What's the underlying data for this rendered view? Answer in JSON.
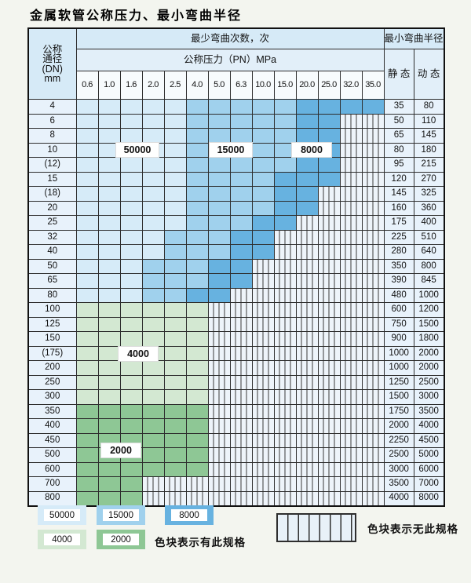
{
  "title": "金属软管公称压力、最小弯曲半径",
  "colors": {
    "b1": "#d6ebf8",
    "b2": "#a0d1ed",
    "b3": "#67b2e0",
    "g1": "#d3e8d2",
    "g2": "#8ec795"
  },
  "table": {
    "header": {
      "dn_label_lines": "公称通径(DN)mm",
      "dn_line1": "公称",
      "dn_line2": "通径",
      "dn_line3": "(DN)",
      "dn_line4": "mm",
      "cycles_label": "最少弯曲次数，次",
      "pressure_label": "公称压力（PN）MPa",
      "pressures": [
        "0.6",
        "1.0",
        "1.6",
        "2.0",
        "2.5",
        "4.0",
        "5.0",
        "6.3",
        "10.0",
        "15.0",
        "20.0",
        "25.0",
        "32.0",
        "35.0"
      ],
      "radius_label": "最小弯曲半径",
      "static_label": "静 态",
      "dynamic_label": "动 态"
    },
    "rows": [
      {
        "dn": "4",
        "static": "35",
        "dynamic": "80",
        "cells": [
          "b1",
          "b1",
          "b1",
          "b1",
          "b1",
          "b2",
          "b2",
          "b2",
          "b2",
          "b2",
          "b3",
          "b3",
          "b3",
          "b3"
        ]
      },
      {
        "dn": "6",
        "static": "50",
        "dynamic": "110",
        "cells": [
          "b1",
          "b1",
          "b1",
          "b1",
          "b1",
          "b2",
          "b2",
          "b2",
          "b2",
          "b2",
          "b3",
          "b3",
          "x",
          "x"
        ]
      },
      {
        "dn": "8",
        "static": "65",
        "dynamic": "145",
        "cells": [
          "b1",
          "b1",
          "b1",
          "b1",
          "b1",
          "b2",
          "b2",
          "b2",
          "b2",
          "b2",
          "b3",
          "b3",
          "x",
          "x"
        ]
      },
      {
        "dn": "10",
        "static": "80",
        "dynamic": "180",
        "cells": [
          "b1",
          "b1",
          "b1",
          "b1",
          "b1",
          "b2",
          "b2",
          "b2",
          "b2",
          "b2",
          "b3",
          "b3",
          "x",
          "x"
        ]
      },
      {
        "dn": "(12)",
        "static": "95",
        "dynamic": "215",
        "cells": [
          "b1",
          "b1",
          "b1",
          "b1",
          "b1",
          "b2",
          "b2",
          "b2",
          "b2",
          "b2",
          "b3",
          "b3",
          "x",
          "x"
        ]
      },
      {
        "dn": "15",
        "static": "120",
        "dynamic": "270",
        "cells": [
          "b1",
          "b1",
          "b1",
          "b1",
          "b1",
          "b2",
          "b2",
          "b2",
          "b2",
          "b3",
          "b3",
          "b3",
          "x",
          "x"
        ]
      },
      {
        "dn": "(18)",
        "static": "145",
        "dynamic": "325",
        "cells": [
          "b1",
          "b1",
          "b1",
          "b1",
          "b1",
          "b2",
          "b2",
          "b2",
          "b2",
          "b3",
          "b3",
          "x",
          "x",
          "x"
        ]
      },
      {
        "dn": "20",
        "static": "160",
        "dynamic": "360",
        "cells": [
          "b1",
          "b1",
          "b1",
          "b1",
          "b1",
          "b2",
          "b2",
          "b2",
          "b2",
          "b3",
          "b3",
          "x",
          "x",
          "x"
        ]
      },
      {
        "dn": "25",
        "static": "175",
        "dynamic": "400",
        "cells": [
          "b1",
          "b1",
          "b1",
          "b1",
          "b1",
          "b2",
          "b2",
          "b2",
          "b3",
          "b3",
          "x",
          "x",
          "x",
          "x"
        ]
      },
      {
        "dn": "32",
        "static": "225",
        "dynamic": "510",
        "cells": [
          "b1",
          "b1",
          "b1",
          "b1",
          "b2",
          "b2",
          "b2",
          "b3",
          "b3",
          "x",
          "x",
          "x",
          "x",
          "x"
        ]
      },
      {
        "dn": "40",
        "static": "280",
        "dynamic": "640",
        "cells": [
          "b1",
          "b1",
          "b1",
          "b1",
          "b2",
          "b2",
          "b2",
          "b3",
          "b3",
          "x",
          "x",
          "x",
          "x",
          "x"
        ]
      },
      {
        "dn": "50",
        "static": "350",
        "dynamic": "800",
        "cells": [
          "b1",
          "b1",
          "b1",
          "b2",
          "b2",
          "b2",
          "b3",
          "b3",
          "x",
          "x",
          "x",
          "x",
          "x",
          "x"
        ]
      },
      {
        "dn": "65",
        "static": "390",
        "dynamic": "845",
        "cells": [
          "b1",
          "b1",
          "b1",
          "b2",
          "b2",
          "b2",
          "b3",
          "b3",
          "x",
          "x",
          "x",
          "x",
          "x",
          "x"
        ]
      },
      {
        "dn": "80",
        "static": "480",
        "dynamic": "1000",
        "cells": [
          "b1",
          "b1",
          "b1",
          "b2",
          "b2",
          "b3",
          "b3",
          "x",
          "x",
          "x",
          "x",
          "x",
          "x",
          "x"
        ]
      },
      {
        "dn": "100",
        "static": "600",
        "dynamic": "1200",
        "cells": [
          "g1",
          "g1",
          "g1",
          "g1",
          "g1",
          "g1",
          "x",
          "x",
          "x",
          "x",
          "x",
          "x",
          "x",
          "x"
        ]
      },
      {
        "dn": "125",
        "static": "750",
        "dynamic": "1500",
        "cells": [
          "g1",
          "g1",
          "g1",
          "g1",
          "g1",
          "g1",
          "x",
          "x",
          "x",
          "x",
          "x",
          "x",
          "x",
          "x"
        ]
      },
      {
        "dn": "150",
        "static": "900",
        "dynamic": "1800",
        "cells": [
          "g1",
          "g1",
          "g1",
          "g1",
          "g1",
          "g1",
          "x",
          "x",
          "x",
          "x",
          "x",
          "x",
          "x",
          "x"
        ]
      },
      {
        "dn": "(175)",
        "static": "1000",
        "dynamic": "2000",
        "cells": [
          "g1",
          "g1",
          "g1",
          "g1",
          "g1",
          "g1",
          "x",
          "x",
          "x",
          "x",
          "x",
          "x",
          "x",
          "x"
        ]
      },
      {
        "dn": "200",
        "static": "1000",
        "dynamic": "2000",
        "cells": [
          "g1",
          "g1",
          "g1",
          "g1",
          "g1",
          "g1",
          "x",
          "x",
          "x",
          "x",
          "x",
          "x",
          "x",
          "x"
        ]
      },
      {
        "dn": "250",
        "static": "1250",
        "dynamic": "2500",
        "cells": [
          "g1",
          "g1",
          "g1",
          "g1",
          "g1",
          "g1",
          "x",
          "x",
          "x",
          "x",
          "x",
          "x",
          "x",
          "x"
        ]
      },
      {
        "dn": "300",
        "static": "1500",
        "dynamic": "3000",
        "cells": [
          "g1",
          "g1",
          "g1",
          "g1",
          "g1",
          "g1",
          "x",
          "x",
          "x",
          "x",
          "x",
          "x",
          "x",
          "x"
        ]
      },
      {
        "dn": "350",
        "static": "1750",
        "dynamic": "3500",
        "cells": [
          "g2",
          "g2",
          "g2",
          "g2",
          "g2",
          "g2",
          "x",
          "x",
          "x",
          "x",
          "x",
          "x",
          "x",
          "x"
        ]
      },
      {
        "dn": "400",
        "static": "2000",
        "dynamic": "4000",
        "cells": [
          "g2",
          "g2",
          "g2",
          "g2",
          "g2",
          "g2",
          "x",
          "x",
          "x",
          "x",
          "x",
          "x",
          "x",
          "x"
        ]
      },
      {
        "dn": "450",
        "static": "2250",
        "dynamic": "4500",
        "cells": [
          "g2",
          "g2",
          "g2",
          "g2",
          "g2",
          "g2",
          "x",
          "x",
          "x",
          "x",
          "x",
          "x",
          "x",
          "x"
        ]
      },
      {
        "dn": "500",
        "static": "2500",
        "dynamic": "5000",
        "cells": [
          "g2",
          "g2",
          "g2",
          "g2",
          "g2",
          "g2",
          "x",
          "x",
          "x",
          "x",
          "x",
          "x",
          "x",
          "x"
        ]
      },
      {
        "dn": "600",
        "static": "3000",
        "dynamic": "6000",
        "cells": [
          "g2",
          "g2",
          "g2",
          "g2",
          "g2",
          "g2",
          "x",
          "x",
          "x",
          "x",
          "x",
          "x",
          "x",
          "x"
        ]
      },
      {
        "dn": "700",
        "static": "3500",
        "dynamic": "7000",
        "cells": [
          "g2",
          "g2",
          "g2",
          "x",
          "x",
          "x",
          "x",
          "x",
          "x",
          "x",
          "x",
          "x",
          "x",
          "x"
        ]
      },
      {
        "dn": "800",
        "static": "4000",
        "dynamic": "8000",
        "cells": [
          "g2",
          "g2",
          "g2",
          "x",
          "x",
          "x",
          "x",
          "x",
          "x",
          "x",
          "x",
          "x",
          "x",
          "x"
        ]
      }
    ],
    "overlays": {
      "label_50000": "50000",
      "label_15000": "15000",
      "label_8000": "8000",
      "label_4000": "4000",
      "label_2000": "2000"
    }
  },
  "legend": {
    "items": [
      {
        "label": "50000",
        "color": "b1"
      },
      {
        "label": "15000",
        "color": "b2"
      },
      {
        "label": "8000",
        "color": "b3"
      },
      {
        "label": "4000",
        "color": "g1"
      },
      {
        "label": "2000",
        "color": "g2"
      }
    ],
    "has_spec_text": "色块表示有此规格",
    "no_spec_text": "色块表示无此规格"
  }
}
